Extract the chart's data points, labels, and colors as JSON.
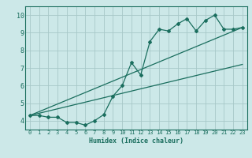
{
  "xlabel": "Humidex (Indice chaleur)",
  "ylabel": "",
  "bg_color": "#cce8e8",
  "grid_color": "#a8c8c8",
  "line_color": "#1a6e5e",
  "xlim": [
    -0.5,
    23.5
  ],
  "ylim": [
    3.5,
    10.5
  ],
  "xticks": [
    0,
    1,
    2,
    3,
    4,
    5,
    6,
    7,
    8,
    9,
    10,
    11,
    12,
    13,
    14,
    15,
    16,
    17,
    18,
    19,
    20,
    21,
    22,
    23
  ],
  "yticks": [
    4,
    5,
    6,
    7,
    8,
    9,
    10
  ],
  "curve_x": [
    0,
    1,
    2,
    3,
    4,
    5,
    6,
    7,
    8,
    9,
    10,
    11,
    12,
    13,
    14,
    15,
    16,
    17,
    18,
    19,
    20,
    21,
    22,
    23
  ],
  "curve_y": [
    4.3,
    4.3,
    4.2,
    4.2,
    3.9,
    3.9,
    3.75,
    4.0,
    4.35,
    5.4,
    6.0,
    7.3,
    6.6,
    8.5,
    9.2,
    9.1,
    9.5,
    9.8,
    9.1,
    9.7,
    10.0,
    9.2,
    9.2,
    9.3
  ],
  "line1_x": [
    0,
    23
  ],
  "line1_y": [
    4.3,
    9.3
  ],
  "line2_x": [
    0,
    23
  ],
  "line2_y": [
    4.3,
    7.2
  ]
}
